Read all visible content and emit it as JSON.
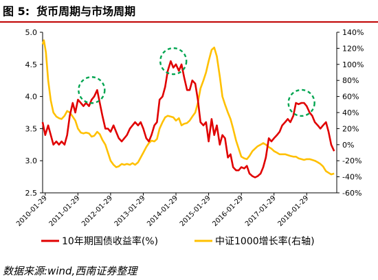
{
  "header": {
    "figure_label": "图 5:",
    "title": "货币周期与市场周期"
  },
  "source_note": "数据来源:wind,西南证券整理",
  "chart_data": {
    "type": "line",
    "left_axis": {
      "range": [
        2.5,
        5.0
      ],
      "ticks": [
        "5.0",
        "4.5",
        "4.0",
        "3.5",
        "3.0",
        "2.5"
      ],
      "tick_values": [
        5.0,
        4.5,
        4.0,
        3.5,
        3.0,
        2.5
      ]
    },
    "right_axis": {
      "range": [
        -60,
        140
      ],
      "ticks": [
        "140%",
        "120%",
        "100%",
        "80%",
        "60%",
        "40%",
        "20%",
        "0%",
        "-20%",
        "-40%",
        "-60%"
      ],
      "tick_values": [
        140,
        120,
        100,
        80,
        60,
        40,
        20,
        0,
        -20,
        -40,
        -60
      ]
    },
    "x_axis": {
      "ticks": [
        "2010-01-29",
        "2011-01-29",
        "2012-01-29",
        "2013-01-29",
        "2014-01-29",
        "2015-01-29",
        "2016-01-29",
        "2017-01-29",
        "2018-01-29"
      ],
      "tick_values": [
        2010.08,
        2011.08,
        2012.08,
        2013.08,
        2014.08,
        2015.08,
        2016.08,
        2017.08,
        2018.08
      ],
      "range": [
        2010.0,
        2019.0
      ]
    },
    "series": [
      {
        "name": "10年期国债收益率(%)",
        "axis": "left",
        "color": "#e00000",
        "points": [
          [
            2010.0,
            3.6
          ],
          [
            2010.08,
            3.4
          ],
          [
            2010.17,
            3.55
          ],
          [
            2010.25,
            3.4
          ],
          [
            2010.33,
            3.25
          ],
          [
            2010.42,
            3.3
          ],
          [
            2010.5,
            3.25
          ],
          [
            2010.58,
            3.3
          ],
          [
            2010.67,
            3.25
          ],
          [
            2010.75,
            3.4
          ],
          [
            2010.83,
            3.7
          ],
          [
            2010.92,
            3.9
          ],
          [
            2011.0,
            3.75
          ],
          [
            2011.08,
            3.95
          ],
          [
            2011.17,
            3.9
          ],
          [
            2011.25,
            3.85
          ],
          [
            2011.33,
            3.9
          ],
          [
            2011.42,
            3.85
          ],
          [
            2011.5,
            3.95
          ],
          [
            2011.58,
            4.0
          ],
          [
            2011.67,
            4.1
          ],
          [
            2011.75,
            3.9
          ],
          [
            2011.83,
            3.7
          ],
          [
            2011.92,
            3.5
          ],
          [
            2012.0,
            3.5
          ],
          [
            2012.08,
            3.45
          ],
          [
            2012.17,
            3.55
          ],
          [
            2012.25,
            3.45
          ],
          [
            2012.33,
            3.35
          ],
          [
            2012.42,
            3.3
          ],
          [
            2012.5,
            3.35
          ],
          [
            2012.58,
            3.4
          ],
          [
            2012.67,
            3.5
          ],
          [
            2012.75,
            3.55
          ],
          [
            2012.83,
            3.6
          ],
          [
            2012.92,
            3.55
          ],
          [
            2013.0,
            3.6
          ],
          [
            2013.08,
            3.5
          ],
          [
            2013.17,
            3.35
          ],
          [
            2013.25,
            3.3
          ],
          [
            2013.33,
            3.4
          ],
          [
            2013.42,
            3.55
          ],
          [
            2013.5,
            3.6
          ],
          [
            2013.58,
            3.95
          ],
          [
            2013.67,
            4.0
          ],
          [
            2013.75,
            4.15
          ],
          [
            2013.83,
            4.4
          ],
          [
            2013.92,
            4.55
          ],
          [
            2014.0,
            4.45
          ],
          [
            2014.08,
            4.5
          ],
          [
            2014.17,
            4.4
          ],
          [
            2014.25,
            4.5
          ],
          [
            2014.33,
            4.3
          ],
          [
            2014.42,
            4.1
          ],
          [
            2014.5,
            4.1
          ],
          [
            2014.58,
            4.25
          ],
          [
            2014.67,
            4.2
          ],
          [
            2014.75,
            3.95
          ],
          [
            2014.83,
            3.6
          ],
          [
            2014.92,
            3.55
          ],
          [
            2015.0,
            3.6
          ],
          [
            2015.08,
            3.3
          ],
          [
            2015.17,
            3.65
          ],
          [
            2015.25,
            3.4
          ],
          [
            2015.33,
            3.55
          ],
          [
            2015.42,
            3.25
          ],
          [
            2015.5,
            3.4
          ],
          [
            2015.58,
            3.35
          ],
          [
            2015.67,
            3.05
          ],
          [
            2015.75,
            3.1
          ],
          [
            2015.83,
            2.9
          ],
          [
            2015.92,
            2.85
          ],
          [
            2016.0,
            2.85
          ],
          [
            2016.08,
            2.9
          ],
          [
            2016.17,
            2.88
          ],
          [
            2016.25,
            2.92
          ],
          [
            2016.33,
            2.8
          ],
          [
            2016.42,
            2.76
          ],
          [
            2016.5,
            2.74
          ],
          [
            2016.58,
            2.76
          ],
          [
            2016.67,
            2.8
          ],
          [
            2016.75,
            2.9
          ],
          [
            2016.83,
            3.05
          ],
          [
            2016.92,
            3.35
          ],
          [
            2017.0,
            3.3
          ],
          [
            2017.08,
            3.35
          ],
          [
            2017.17,
            3.4
          ],
          [
            2017.25,
            3.45
          ],
          [
            2017.33,
            3.55
          ],
          [
            2017.42,
            3.6
          ],
          [
            2017.5,
            3.65
          ],
          [
            2017.58,
            3.6
          ],
          [
            2017.67,
            3.7
          ],
          [
            2017.75,
            3.9
          ],
          [
            2017.83,
            3.88
          ],
          [
            2017.92,
            3.9
          ],
          [
            2018.0,
            3.9
          ],
          [
            2018.08,
            3.85
          ],
          [
            2018.17,
            3.75
          ],
          [
            2018.25,
            3.7
          ],
          [
            2018.33,
            3.6
          ],
          [
            2018.42,
            3.55
          ],
          [
            2018.5,
            3.5
          ],
          [
            2018.58,
            3.55
          ],
          [
            2018.67,
            3.6
          ],
          [
            2018.75,
            3.45
          ],
          [
            2018.83,
            3.25
          ],
          [
            2018.92,
            3.15
          ]
        ]
      },
      {
        "name": "中证1000增长率(右轴)",
        "axis": "right",
        "color": "#ffc000",
        "points": [
          [
            2010.0,
            125
          ],
          [
            2010.04,
            130
          ],
          [
            2010.1,
            115
          ],
          [
            2010.17,
            80
          ],
          [
            2010.25,
            55
          ],
          [
            2010.33,
            40
          ],
          [
            2010.42,
            35
          ],
          [
            2010.5,
            33
          ],
          [
            2010.58,
            32
          ],
          [
            2010.67,
            36
          ],
          [
            2010.75,
            42
          ],
          [
            2010.83,
            40
          ],
          [
            2010.92,
            35
          ],
          [
            2011.0,
            30
          ],
          [
            2011.08,
            20
          ],
          [
            2011.17,
            15
          ],
          [
            2011.25,
            14
          ],
          [
            2011.33,
            15
          ],
          [
            2011.42,
            14
          ],
          [
            2011.5,
            10
          ],
          [
            2011.58,
            11
          ],
          [
            2011.67,
            16
          ],
          [
            2011.75,
            13
          ],
          [
            2011.83,
            6
          ],
          [
            2011.92,
            0
          ],
          [
            2012.0,
            -10
          ],
          [
            2012.08,
            -20
          ],
          [
            2012.17,
            -25
          ],
          [
            2012.25,
            -28
          ],
          [
            2012.33,
            -27
          ],
          [
            2012.42,
            -24
          ],
          [
            2012.5,
            -25
          ],
          [
            2012.58,
            -24
          ],
          [
            2012.67,
            -25
          ],
          [
            2012.75,
            -23
          ],
          [
            2012.83,
            -25
          ],
          [
            2012.92,
            -22
          ],
          [
            2013.0,
            -16
          ],
          [
            2013.08,
            -10
          ],
          [
            2013.17,
            -3
          ],
          [
            2013.25,
            2
          ],
          [
            2013.33,
            5
          ],
          [
            2013.42,
            4
          ],
          [
            2013.5,
            7
          ],
          [
            2013.58,
            20
          ],
          [
            2013.67,
            28
          ],
          [
            2013.75,
            34
          ],
          [
            2013.83,
            36
          ],
          [
            2013.92,
            35
          ],
          [
            2014.0,
            34
          ],
          [
            2014.08,
            30
          ],
          [
            2014.17,
            33
          ],
          [
            2014.25,
            24
          ],
          [
            2014.33,
            26
          ],
          [
            2014.42,
            27
          ],
          [
            2014.5,
            30
          ],
          [
            2014.58,
            35
          ],
          [
            2014.67,
            40
          ],
          [
            2014.75,
            52
          ],
          [
            2014.83,
            70
          ],
          [
            2014.92,
            80
          ],
          [
            2015.0,
            90
          ],
          [
            2015.08,
            104
          ],
          [
            2015.17,
            118
          ],
          [
            2015.25,
            121
          ],
          [
            2015.33,
            110
          ],
          [
            2015.42,
            85
          ],
          [
            2015.5,
            60
          ],
          [
            2015.58,
            50
          ],
          [
            2015.67,
            40
          ],
          [
            2015.75,
            32
          ],
          [
            2015.83,
            20
          ],
          [
            2015.92,
            5
          ],
          [
            2016.0,
            -5
          ],
          [
            2016.08,
            -15
          ],
          [
            2016.17,
            -17
          ],
          [
            2016.25,
            -18
          ],
          [
            2016.33,
            -14
          ],
          [
            2016.42,
            -8
          ],
          [
            2016.5,
            -5
          ],
          [
            2016.58,
            -2
          ],
          [
            2016.67,
            0
          ],
          [
            2016.75,
            2
          ],
          [
            2016.83,
            0
          ],
          [
            2016.92,
            -3
          ],
          [
            2017.0,
            -5
          ],
          [
            2017.08,
            -8
          ],
          [
            2017.17,
            -10
          ],
          [
            2017.25,
            -12
          ],
          [
            2017.33,
            -12
          ],
          [
            2017.42,
            -12
          ],
          [
            2017.5,
            -13
          ],
          [
            2017.58,
            -14
          ],
          [
            2017.67,
            -15
          ],
          [
            2017.75,
            -15
          ],
          [
            2017.83,
            -17
          ],
          [
            2017.92,
            -18
          ],
          [
            2018.0,
            -19
          ],
          [
            2018.08,
            -18
          ],
          [
            2018.17,
            -18
          ],
          [
            2018.25,
            -19
          ],
          [
            2018.33,
            -20
          ],
          [
            2018.42,
            -22
          ],
          [
            2018.5,
            -24
          ],
          [
            2018.58,
            -27
          ],
          [
            2018.67,
            -33
          ],
          [
            2018.75,
            -35
          ],
          [
            2018.83,
            -37
          ],
          [
            2018.92,
            -36
          ]
        ]
      }
    ],
    "annotations": [
      {
        "type": "dashed-circle",
        "color": "#00a550",
        "cx": 2011.5,
        "cy": 4.1
      },
      {
        "type": "dashed-circle",
        "color": "#00a550",
        "cx": 2014.0,
        "cy": 4.55
      },
      {
        "type": "dashed-circle",
        "color": "#00a550",
        "cx": 2017.92,
        "cy": 3.9
      }
    ],
    "legend_placement": "bottom",
    "grid": false
  },
  "legend": [
    {
      "label": "10年期国债收益率(%)",
      "color": "#e00000"
    },
    {
      "label": "中证1000增长率(右轴)",
      "color": "#ffc000"
    }
  ]
}
